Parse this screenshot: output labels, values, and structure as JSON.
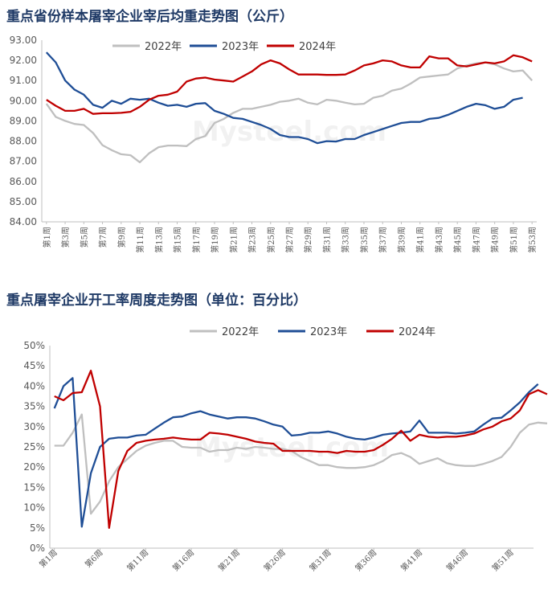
{
  "chart_data": [
    {
      "type": "line",
      "title": "重点省份样本屠宰企业宰后均重走势图（公斤）",
      "xlabel": "",
      "ylabel": "",
      "ylim": [
        84,
        93
      ],
      "y_ticks": [
        "84.00",
        "85.00",
        "86.00",
        "87.00",
        "88.00",
        "89.00",
        "90.00",
        "91.00",
        "92.00",
        "93.00"
      ],
      "x_tick_labels": [
        "第1周",
        "第3周",
        "第5周",
        "第7周",
        "第9周",
        "第11周",
        "第13周",
        "第15周",
        "第17周",
        "第19周",
        "第21周",
        "第23周",
        "第25周",
        "第27周",
        "第29周",
        "第31周",
        "第33周",
        "第35周",
        "第37周",
        "第39周",
        "第41周",
        "第43周",
        "第45周",
        "第47周",
        "第49周",
        "第51周",
        "第53周"
      ],
      "weeks": 53,
      "grid": false,
      "legend_position": "top",
      "series": [
        {
          "name": "2022年",
          "color": "#bfbfbf",
          "values": [
            89.85,
            89.2,
            89.0,
            88.85,
            88.8,
            88.4,
            87.8,
            87.55,
            87.35,
            87.3,
            86.95,
            87.4,
            87.7,
            87.78,
            87.78,
            87.75,
            88.1,
            88.25,
            88.9,
            89.1,
            89.4,
            89.6,
            89.6,
            89.7,
            89.8,
            89.95,
            90.0,
            90.1,
            89.9,
            89.82,
            90.05,
            90.0,
            89.9,
            89.82,
            89.85,
            90.15,
            90.25,
            90.5,
            90.6,
            90.85,
            91.15,
            91.2,
            91.25,
            91.3,
            91.6,
            91.75,
            91.85,
            91.9,
            91.8,
            91.6,
            91.45,
            91.5,
            91.0
          ]
        },
        {
          "name": "2023年",
          "color": "#1f4e96",
          "values": [
            92.4,
            91.9,
            91.0,
            90.55,
            90.3,
            89.8,
            89.65,
            90.0,
            89.85,
            90.1,
            90.05,
            90.1,
            89.9,
            89.75,
            89.8,
            89.7,
            89.85,
            89.88,
            89.5,
            89.35,
            89.15,
            89.1,
            88.95,
            88.8,
            88.6,
            88.3,
            88.2,
            88.2,
            88.1,
            87.9,
            88.0,
            87.98,
            88.1,
            88.1,
            88.3,
            88.45,
            88.6,
            88.75,
            88.9,
            88.95,
            88.95,
            89.1,
            89.15,
            89.3,
            89.5,
            89.7,
            89.85,
            89.78,
            89.6,
            89.7,
            90.05,
            90.15
          ]
        },
        {
          "name": "2024年",
          "color": "#c00000",
          "values": [
            90.05,
            89.75,
            89.5,
            89.5,
            89.6,
            89.35,
            89.38,
            89.38,
            89.4,
            89.45,
            89.7,
            90.05,
            90.25,
            90.3,
            90.45,
            90.95,
            91.1,
            91.15,
            91.05,
            91.0,
            90.95,
            91.2,
            91.45,
            91.8,
            92.0,
            91.85,
            91.55,
            91.3,
            91.3,
            91.3,
            91.28,
            91.28,
            91.3,
            91.5,
            91.75,
            91.85,
            92.0,
            91.95,
            91.75,
            91.65,
            91.65,
            92.2,
            92.1,
            92.1,
            91.75,
            91.7,
            91.8,
            91.9,
            91.85,
            91.95,
            92.25,
            92.15,
            91.95
          ]
        }
      ]
    },
    {
      "type": "line",
      "title": "重点屠宰企业开工率周度走势图（单位：百分比）",
      "xlabel": "",
      "ylabel": "",
      "ylim": [
        0,
        50
      ],
      "y_ticks": [
        "0%",
        "5%",
        "10%",
        "15%",
        "20%",
        "25%",
        "30%",
        "35%",
        "40%",
        "45%",
        "50%"
      ],
      "x_tick_labels": [
        "第1周",
        "第6周",
        "第11周",
        "第16周",
        "第21周",
        "第26周",
        "第31周",
        "第36周",
        "第41周",
        "第46周",
        "第51周"
      ],
      "weeks": 53,
      "grid": false,
      "legend_position": "top",
      "series": [
        {
          "name": "2022年",
          "color": "#bfbfbf",
          "values": [
            25.3,
            25.3,
            28.5,
            33.0,
            8.5,
            11.5,
            16.5,
            20.0,
            22.0,
            24.0,
            25.3,
            26.0,
            26.5,
            26.5,
            25.0,
            24.8,
            24.8,
            23.8,
            24.2,
            24.2,
            24.8,
            24.5,
            25.0,
            24.8,
            24.5,
            24.5,
            24.0,
            22.5,
            21.5,
            20.5,
            20.5,
            20.0,
            19.8,
            19.8,
            20.0,
            20.5,
            21.5,
            23.0,
            23.5,
            22.5,
            20.8,
            21.5,
            22.2,
            21.0,
            20.5,
            20.3,
            20.3,
            20.8,
            21.5,
            22.5,
            25.0,
            28.5,
            30.5,
            31.0,
            30.8
          ]
        },
        {
          "name": "2023年",
          "color": "#1f4e96",
          "values": [
            34.5,
            40.0,
            42.0,
            5.3,
            18.5,
            25.0,
            27.0,
            27.3,
            27.3,
            27.8,
            28.0,
            29.5,
            31.0,
            32.3,
            32.5,
            33.3,
            33.8,
            33.0,
            32.5,
            32.0,
            32.3,
            32.3,
            32.0,
            31.3,
            30.5,
            30.0,
            27.8,
            28.0,
            28.5,
            28.5,
            28.8,
            28.3,
            27.5,
            27.0,
            26.8,
            27.3,
            28.0,
            28.3,
            28.5,
            28.8,
            31.5,
            28.5,
            28.5,
            28.5,
            28.3,
            28.5,
            28.8,
            30.5,
            32.0,
            32.2,
            34.0,
            36.0,
            38.5,
            40.5
          ]
        },
        {
          "name": "2024年",
          "color": "#c00000",
          "values": [
            37.5,
            36.5,
            38.3,
            38.5,
            43.8,
            35.0,
            5.0,
            19.0,
            24.0,
            26.0,
            26.5,
            26.8,
            27.0,
            27.3,
            27.0,
            26.8,
            26.8,
            28.5,
            28.3,
            28.0,
            27.5,
            27.0,
            26.3,
            26.0,
            25.8,
            24.0,
            24.0,
            24.0,
            24.0,
            23.8,
            23.8,
            23.5,
            24.0,
            23.8,
            23.8,
            24.2,
            25.5,
            27.0,
            29.0,
            26.5,
            28.0,
            27.5,
            27.3,
            27.5,
            27.5,
            27.8,
            28.3,
            29.3,
            30.0,
            31.3,
            32.0,
            34.0,
            38.0,
            39.0,
            38.0
          ]
        }
      ]
    }
  ],
  "watermark": {
    "brand": "Mysteel",
    "text": "Mysteel.com"
  }
}
